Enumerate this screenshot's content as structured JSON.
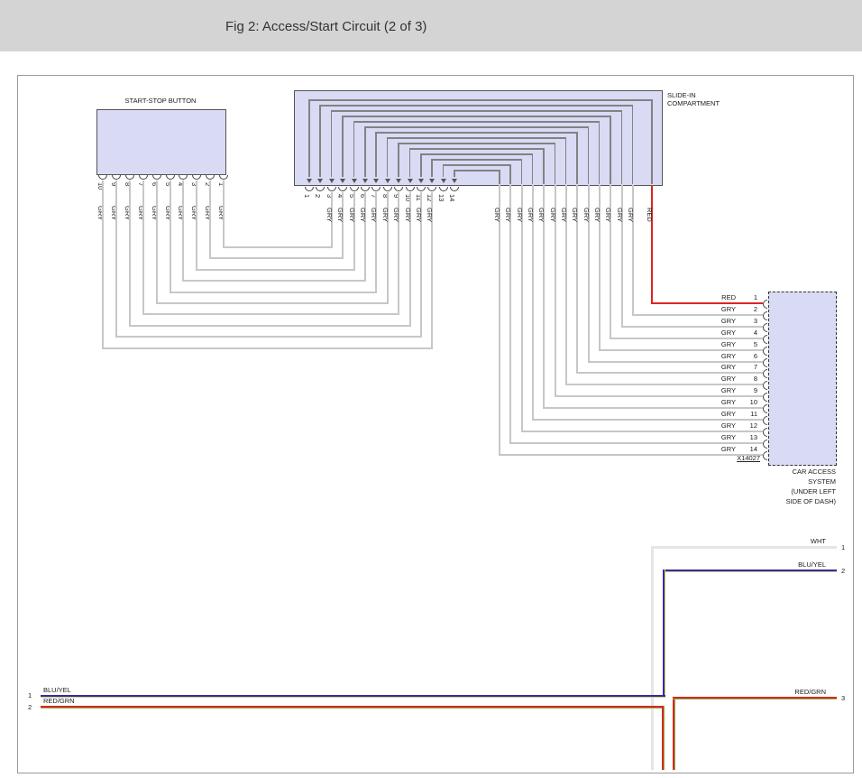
{
  "header": {
    "title": "Fig 2: Access/Start Circuit (2 of 3)"
  },
  "start_stop_button": {
    "label": "START-STOP BUTTON",
    "pins": [
      "10",
      "9",
      "8",
      "7",
      "6",
      "5",
      "4",
      "3",
      "2",
      "1"
    ],
    "wire_color_label": "GRY"
  },
  "slide_in_compartment": {
    "label_lines": [
      "SLIDE-IN",
      "COMPARTMENT"
    ],
    "pins": [
      "1",
      "2",
      "3",
      "4",
      "5",
      "6",
      "7",
      "8",
      "9",
      "10",
      "11",
      "12",
      "13",
      "14"
    ],
    "exit_wire_labels": [
      "RED",
      "GRY",
      "GRY",
      "GRY",
      "GRY",
      "GRY",
      "GRY",
      "GRY",
      "GRY",
      "GRY",
      "GRY",
      "GRY",
      "GRY",
      "GRY"
    ]
  },
  "car_access_connector": {
    "rows": [
      {
        "color": "RED",
        "pin": "1"
      },
      {
        "color": "GRY",
        "pin": "2"
      },
      {
        "color": "GRY",
        "pin": "3"
      },
      {
        "color": "GRY",
        "pin": "4"
      },
      {
        "color": "GRY",
        "pin": "5"
      },
      {
        "color": "GRY",
        "pin": "6"
      },
      {
        "color": "GRY",
        "pin": "7"
      },
      {
        "color": "GRY",
        "pin": "8"
      },
      {
        "color": "GRY",
        "pin": "9"
      },
      {
        "color": "GRY",
        "pin": "10"
      },
      {
        "color": "GRY",
        "pin": "11"
      },
      {
        "color": "GRY",
        "pin": "12"
      },
      {
        "color": "GRY",
        "pin": "13"
      },
      {
        "color": "GRY",
        "pin": "14"
      }
    ],
    "connector_id": "X14027",
    "location_lines": [
      "CAR ACCESS",
      "SYSTEM",
      "(UNDER LEFT",
      "SIDE OF DASH)"
    ]
  },
  "bottom_section": {
    "right_pins": [
      {
        "color": "WHT",
        "pin": "1"
      },
      {
        "color": "BLU/YEL",
        "pin": "2"
      },
      {
        "color": "RED/GRN",
        "pin": "3"
      }
    ],
    "left_pins": [
      {
        "color": "BLU/YEL",
        "pin": "1"
      },
      {
        "color": "RED/GRN",
        "pin": "2"
      }
    ]
  },
  "colors": {
    "gry": "#c7c7c7",
    "wht": "#e5e5e5",
    "red": "#dc2620",
    "blu": "#2b2bbd",
    "yel": "#e3cd4f",
    "grn": "#7cba4a",
    "loop": "#828282",
    "box_fill": "#d9daf4",
    "bar": "#d4d4d4"
  }
}
